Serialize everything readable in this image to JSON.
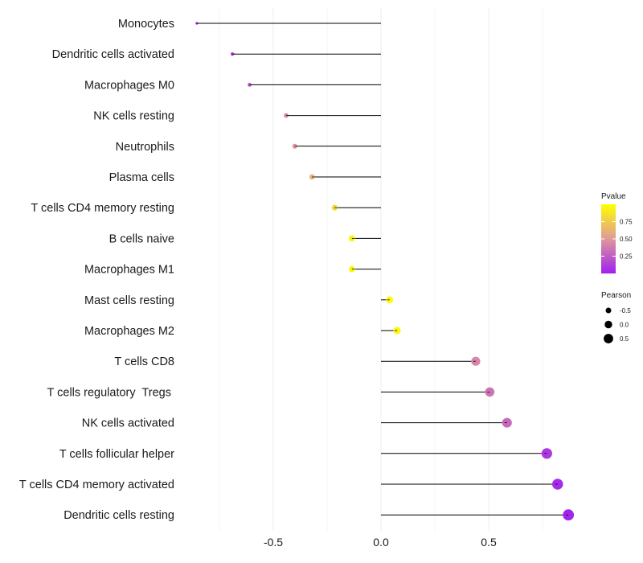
{
  "chart_data": {
    "type": "lollipop",
    "title": "",
    "xlabel": "",
    "ylabel": "",
    "xlim": [
      -1.0,
      0.88
    ],
    "xticks": [
      -0.5,
      0.0,
      0.5
    ],
    "xtick_labels": [
      "-0.5",
      "0.0",
      "0.5"
    ],
    "grid": true,
    "categories": [
      "Monocytes",
      "Dendritic cells activated",
      "Macrophages M0",
      "NK cells resting",
      "Neutrophils",
      "Plasma cells",
      "T cells CD4 memory resting",
      "B cells naive",
      "Macrophages M1",
      "Mast cells resting",
      "Macrophages M2",
      "T cells CD8",
      "T cells regulatory  Tregs ",
      "NK cells activated",
      "T cells follicular helper",
      "T cells CD4 memory activated",
      "Dendritic cells resting"
    ],
    "pearson": [
      -0.855,
      -0.69,
      -0.61,
      -0.44,
      -0.4,
      -0.32,
      -0.215,
      -0.135,
      -0.135,
      0.04,
      0.075,
      0.44,
      0.505,
      0.585,
      0.77,
      0.82,
      0.87
    ],
    "pvalue": [
      0.02,
      0.12,
      0.2,
      0.42,
      0.48,
      0.62,
      0.8,
      0.95,
      0.95,
      0.98,
      0.96,
      0.42,
      0.35,
      0.3,
      0.1,
      0.04,
      0.02
    ],
    "color_legend": {
      "title": "Pvalue",
      "ticks": [
        0.75,
        0.5,
        0.25
      ],
      "tick_labels": [
        "0.75",
        "0.50",
        "0.25"
      ],
      "range": [
        0.0,
        1.0
      ],
      "low_color": "#a020f0",
      "mid_color": "#e0999a",
      "high_color": "#ffff00"
    },
    "size_legend": {
      "title": "Pearson",
      "values": [
        -0.5,
        0.0,
        0.5
      ],
      "labels": [
        "-0.5",
        "0.0",
        "0.5"
      ]
    },
    "legend_position": "right",
    "segment_color": "#000000",
    "grid_color": "#ebebeb"
  }
}
